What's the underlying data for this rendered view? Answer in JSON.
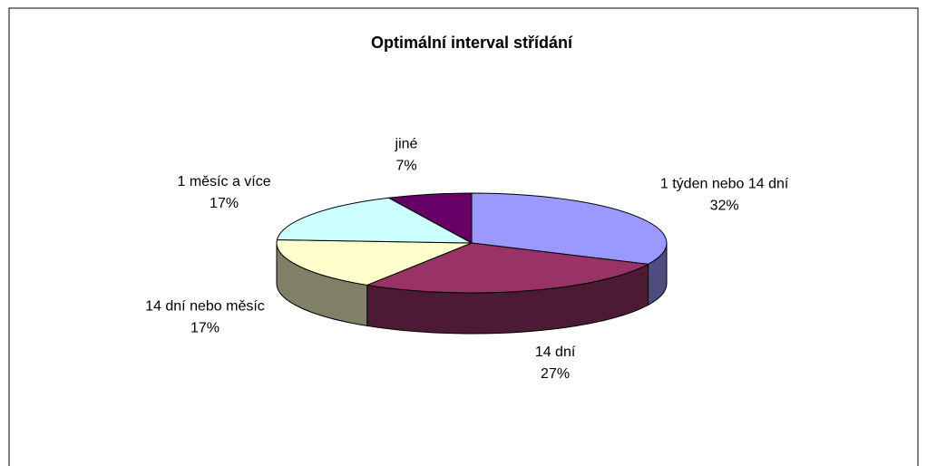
{
  "chart_data": {
    "type": "pie",
    "title": "Optimální interval střídání",
    "categories": [
      "1 týden nebo 14 dní",
      "14 dní",
      "14 dní nebo měsíc",
      "1 měsíc a více",
      "jiné"
    ],
    "values": [
      32,
      27,
      17,
      17,
      7
    ],
    "value_labels": [
      "32%",
      "27%",
      "17%",
      "17%",
      "7%"
    ],
    "colors": [
      "#9999ff",
      "#993366",
      "#ffffcc",
      "#ccffff",
      "#660066"
    ]
  }
}
